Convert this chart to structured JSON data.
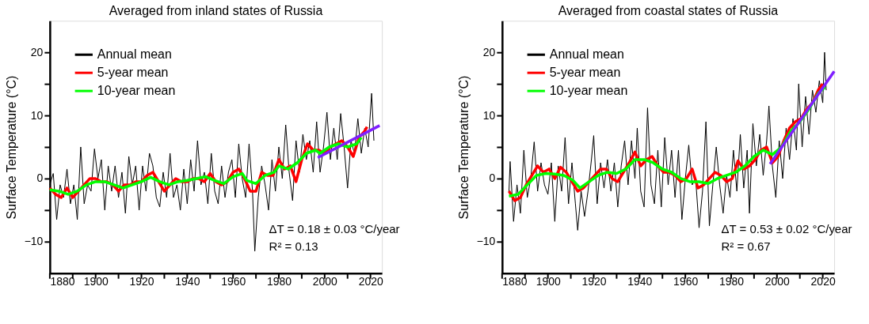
{
  "chart_data": [
    {
      "type": "line",
      "title": "Averaged from inland states of Russia",
      "ylabel": "Surface Temperature (°C)",
      "xlim": [
        1880,
        2025
      ],
      "ylim": [
        -15,
        25
      ],
      "xticks": [
        1880,
        {
          "value": 1890,
          "label": null
        },
        1900,
        {
          "value": 1910,
          "label": null
        },
        1920,
        {
          "value": 1930,
          "label": null
        },
        1940,
        {
          "value": 1950,
          "label": null
        },
        1960,
        {
          "value": 1970,
          "label": null
        },
        1980,
        {
          "value": 1990,
          "label": null
        },
        2000,
        {
          "value": 2010,
          "label": null
        },
        2020
      ],
      "yticks": [
        -10,
        {
          "value": -5,
          "label": null
        },
        0,
        {
          "value": 5,
          "label": null
        },
        10,
        {
          "value": 15,
          "label": null
        },
        20
      ],
      "grid": false,
      "legend": "top left",
      "line_style": "solid",
      "marker": "none",
      "annotations": [
        "ΔT = 0.18 ± 0.03 °C/year",
        "R² = 0.13"
      ],
      "series": [
        {
          "name": "Annual mean",
          "color": "#000000",
          "x": [
            1880,
            1881.5,
            1883,
            1884.5,
            1886,
            1887.5,
            1889,
            1890.5,
            1892,
            1893.5,
            1895,
            1896.5,
            1898,
            1899.5,
            1901,
            1902.5,
            1904,
            1905.5,
            1907,
            1908.5,
            1910,
            1911.5,
            1913,
            1914.5,
            1916,
            1917.5,
            1919,
            1920.5,
            1922,
            1923.5,
            1925,
            1926.5,
            1928,
            1929.5,
            1931,
            1932.5,
            1934,
            1935.5,
            1937,
            1938.5,
            1940,
            1941.5,
            1943,
            1944.5,
            1946,
            1947.5,
            1949,
            1950.5,
            1952,
            1953.5,
            1955,
            1956.5,
            1958,
            1959.5,
            1961,
            1962.5,
            1964,
            1965.5,
            1967,
            1968.5,
            1969.5,
            1971,
            1972.5,
            1974,
            1975.5,
            1977,
            1978.5,
            1980,
            1981.5,
            1983,
            1984.5,
            1986,
            1987.5,
            1989,
            1990.5,
            1992,
            1993.5,
            1995,
            1996.5,
            1998,
            1999.5,
            2001,
            2002.5,
            2004,
            2005.5,
            2007,
            2008.5,
            2010,
            2011.5,
            2013,
            2014.5,
            2016,
            2017.5,
            2019,
            2020.5,
            2021.5
          ],
          "values": [
            -1,
            0.8,
            -6.5,
            -1,
            -3,
            1.5,
            -4,
            -1,
            -6.5,
            5,
            -4,
            -1,
            -2,
            4.7,
            0,
            3,
            -5,
            2,
            -2,
            2,
            -3,
            1,
            -5.5,
            3.5,
            -1,
            2,
            -5,
            2,
            -2,
            4,
            2,
            -3,
            -4.5,
            1,
            -3,
            4,
            -3,
            -1,
            -5,
            1.5,
            -4,
            3,
            -2,
            6,
            -1,
            1,
            -4,
            4,
            -2,
            -4,
            2,
            -3,
            1,
            3,
            -3,
            5.5,
            0,
            -3,
            5.5,
            -2,
            -11.5,
            -3,
            2,
            -1,
            -5,
            3,
            -2,
            5,
            0,
            8.5,
            1,
            -3.5,
            6,
            1,
            7,
            3,
            6,
            1,
            9,
            1,
            5,
            10.5,
            3,
            8,
            3,
            10.3,
            5,
            -1.5,
            6,
            4,
            9.5,
            4,
            8,
            5,
            13.5,
            6
          ]
        },
        {
          "name": "5-year mean",
          "color": "#ff0000",
          "x": [
            1880,
            1882.5,
            1885,
            1887.5,
            1890,
            1892.5,
            1895,
            1897.5,
            1900,
            1902.5,
            1905,
            1907.5,
            1910,
            1912.5,
            1915,
            1917.5,
            1920,
            1922.5,
            1925,
            1927.5,
            1930,
            1932.5,
            1935,
            1937.5,
            1940,
            1942.5,
            1945,
            1947.5,
            1950,
            1952.5,
            1955,
            1957.5,
            1960,
            1962.5,
            1965,
            1967.5,
            1970,
            1972.5,
            1975,
            1977.5,
            1980,
            1982.5,
            1985,
            1987.5,
            1990,
            1992.5,
            1995,
            1997.5,
            2000,
            2002.5,
            2005,
            2007.5,
            2010,
            2012.5,
            2015,
            2017.5,
            2018.5
          ],
          "values": [
            -1.5,
            -2.5,
            -3,
            -1.5,
            -3,
            -2,
            -1,
            0,
            0,
            -0.5,
            -0.5,
            -1,
            -2,
            -1,
            -1,
            -0.5,
            -0.5,
            0.5,
            1,
            -0.5,
            -2,
            -1,
            0,
            -0.5,
            -0.5,
            0,
            0,
            -0.5,
            0.8,
            -0.5,
            -1,
            -0.5,
            1,
            1.5,
            0,
            -2,
            -2,
            1,
            0.5,
            0.5,
            3,
            1.5,
            2,
            -0.5,
            3,
            5.5,
            4.5,
            4.5,
            4,
            5,
            5.5,
            6,
            5,
            3.5,
            6.5,
            7.5,
            8.2
          ]
        },
        {
          "name": "10-year mean",
          "color": "#00ff00",
          "x": [
            1880,
            1884,
            1888,
            1892,
            1896,
            1900,
            1904,
            1908,
            1912,
            1916,
            1920,
            1924,
            1928,
            1932,
            1936,
            1940,
            1944,
            1948,
            1952,
            1956,
            1960,
            1964,
            1966,
            1970,
            1974,
            1978,
            1980,
            1984,
            1988,
            1992,
            1996,
            1998,
            2002,
            2006,
            2010,
            2014,
            2016
          ],
          "values": [
            -1.8,
            -2,
            -2.5,
            -2,
            -1,
            -0.5,
            -0.5,
            -1,
            -1.5,
            -1,
            -0.5,
            0.2,
            -0.5,
            -1,
            -0.5,
            -0.3,
            0,
            0.3,
            -0.3,
            -0.8,
            0.3,
            0.8,
            -0.3,
            -0.8,
            0.5,
            1,
            2,
            1.5,
            2.5,
            4,
            4.5,
            4,
            5,
            5.5,
            5,
            5.5,
            6.5
          ]
        },
        {
          "color": "#7f1fff",
          "x": [
            1997,
            2024
          ],
          "values": [
            3.3,
            8.4
          ]
        }
      ]
    },
    {
      "type": "line",
      "title": "Averaged from coastal states of Russia",
      "ylabel": "Surface Temperature (°C)",
      "xlim": [
        1880,
        2025
      ],
      "ylim": [
        -15,
        25
      ],
      "xticks": [
        1880,
        {
          "value": 1890,
          "label": null
        },
        1900,
        {
          "value": 1910,
          "label": null
        },
        1920,
        {
          "value": 1930,
          "label": null
        },
        1940,
        {
          "value": 1950,
          "label": null
        },
        1960,
        {
          "value": 1970,
          "label": null
        },
        1980,
        {
          "value": 1990,
          "label": null
        },
        2000,
        {
          "value": 2010,
          "label": null
        },
        2020
      ],
      "yticks": [
        -10,
        {
          "value": -5,
          "label": null
        },
        0,
        {
          "value": 5,
          "label": null
        },
        10,
        {
          "value": 15,
          "label": null
        },
        20
      ],
      "grid": false,
      "legend": "top left",
      "line_style": "solid",
      "marker": "none",
      "annotations": [
        "ΔT = 0.53 ± 0.02 °C/year",
        "R² = 0.67"
      ],
      "series": [
        {
          "name": "Annual mean",
          "color": "#000000",
          "x": [
            1883,
            1883.5,
            1885,
            1886.5,
            1888,
            1889.5,
            1891,
            1892.5,
            1894,
            1895.5,
            1897,
            1898.5,
            1900,
            1901.5,
            1903,
            1904.5,
            1906,
            1907.5,
            1909,
            1910.5,
            1912,
            1913,
            1914.5,
            1916,
            1917.5,
            1919,
            1920,
            1921.5,
            1923,
            1924.5,
            1926,
            1927.5,
            1929,
            1930.5,
            1932,
            1933.5,
            1935,
            1936.5,
            1938,
            1939,
            1940.5,
            1942,
            1943.5,
            1945,
            1946.5,
            1948,
            1949.5,
            1951,
            1952.5,
            1954,
            1955.5,
            1957,
            1958.5,
            1960,
            1961.5,
            1963,
            1964.5,
            1966,
            1967.5,
            1969,
            1970.5,
            1972,
            1973.5,
            1975,
            1976.5,
            1978,
            1979.5,
            1981,
            1982.5,
            1984,
            1985.5,
            1987,
            1988,
            1989.5,
            1991,
            1992.5,
            1994,
            1995.5,
            1996.5,
            1998,
            1999.5,
            2001,
            2002.5,
            2004,
            2005.5,
            2007,
            2008.5,
            2009.5,
            2011,
            2012.5,
            2014,
            2015.5,
            2017,
            2018.5,
            2020,
            2020.8,
            2021.5
          ],
          "values": [
            -2,
            2.7,
            -6.8,
            -1,
            -5.5,
            4.5,
            -3,
            0,
            5.8,
            -2,
            2.5,
            -1,
            -2.5,
            2.5,
            -6.8,
            2,
            -2,
            6.5,
            -4,
            2.5,
            -4,
            -8.2,
            -2,
            -6,
            -2,
            3,
            6.8,
            -4,
            2.5,
            -1.5,
            3,
            -2,
            2.5,
            -4.5,
            2,
            6,
            -1,
            6,
            0,
            8,
            -2,
            -4.5,
            11.2,
            -1,
            -4,
            4.5,
            -4.5,
            6.5,
            -1,
            4.5,
            -3,
            4.5,
            -6.5,
            0,
            5.3,
            -1,
            0,
            -7.8,
            -2,
            9,
            -7.5,
            -1,
            5,
            -1,
            -5.5,
            0.5,
            -3,
            4.5,
            -2,
            7,
            -1.5,
            4.5,
            -5.5,
            8.7,
            2,
            7,
            0.5,
            6,
            11.5,
            2,
            -3,
            6,
            0,
            8,
            3,
            9.5,
            4.5,
            15,
            5,
            13,
            7,
            14,
            10.5,
            15.5,
            12,
            20,
            14
          ]
        },
        {
          "name": "5-year mean",
          "color": "#ff0000",
          "x": [
            1883,
            1885.5,
            1888,
            1890.5,
            1893,
            1895.5,
            1898,
            1900.5,
            1903,
            1905.5,
            1908,
            1910.5,
            1913,
            1915.5,
            1918,
            1920.5,
            1923,
            1925.5,
            1928,
            1930.5,
            1933,
            1935.5,
            1938,
            1940.5,
            1943,
            1945.5,
            1948,
            1950.5,
            1953,
            1955.5,
            1958,
            1960.5,
            1963,
            1965.5,
            1968,
            1970.5,
            1973,
            1975.5,
            1978,
            1980.5,
            1983,
            1985.5,
            1988,
            1990.5,
            1993,
            1995.5,
            1998,
            2000.5,
            2003,
            2005.5,
            2008,
            2010.5,
            2013,
            2015.5,
            2018,
            2020
          ],
          "values": [
            -2,
            -3.5,
            -3,
            -1,
            0.5,
            2,
            1,
            1.5,
            0,
            1.8,
            1,
            -0.5,
            -2,
            -1.5,
            -0.5,
            0.5,
            1.5,
            1.5,
            0,
            -0.5,
            1,
            2.5,
            4.2,
            2,
            3,
            3.5,
            2,
            1,
            1,
            0.5,
            -0.5,
            0,
            1.5,
            -1.5,
            -1,
            0,
            1,
            0.5,
            -0.5,
            0,
            2.8,
            1.5,
            2,
            3,
            4.5,
            5,
            2.5,
            3.5,
            6,
            8,
            9,
            9.5,
            11,
            12,
            14,
            15
          ]
        },
        {
          "name": "10-year mean",
          "color": "#00ff00",
          "x": [
            1883,
            1887,
            1891,
            1895,
            1899,
            1903,
            1907,
            1911,
            1914,
            1918,
            1922,
            1926,
            1930,
            1934,
            1938,
            1942,
            1946,
            1950,
            1954,
            1958,
            1962,
            1966,
            1970,
            1974,
            1978,
            1982,
            1986,
            1990,
            1994,
            1998,
            2002,
            2006,
            2010,
            2014,
            2018,
            2021
          ],
          "values": [
            -2.8,
            -2.5,
            -1,
            0.5,
            0.8,
            0.7,
            0.5,
            -0.3,
            -1.5,
            -0.5,
            0.5,
            1,
            0.8,
            1.5,
            3,
            3,
            2.5,
            1.5,
            1,
            0,
            -0.5,
            -0.5,
            -0.8,
            0,
            0.5,
            1,
            2,
            3.5,
            4.5,
            3.8,
            5,
            7.5,
            9,
            11,
            13.5,
            14.5
          ]
        },
        {
          "color": "#7f1fff",
          "x": [
            1997,
            2025
          ],
          "values": [
            2.3,
            17
          ]
        }
      ]
    }
  ]
}
